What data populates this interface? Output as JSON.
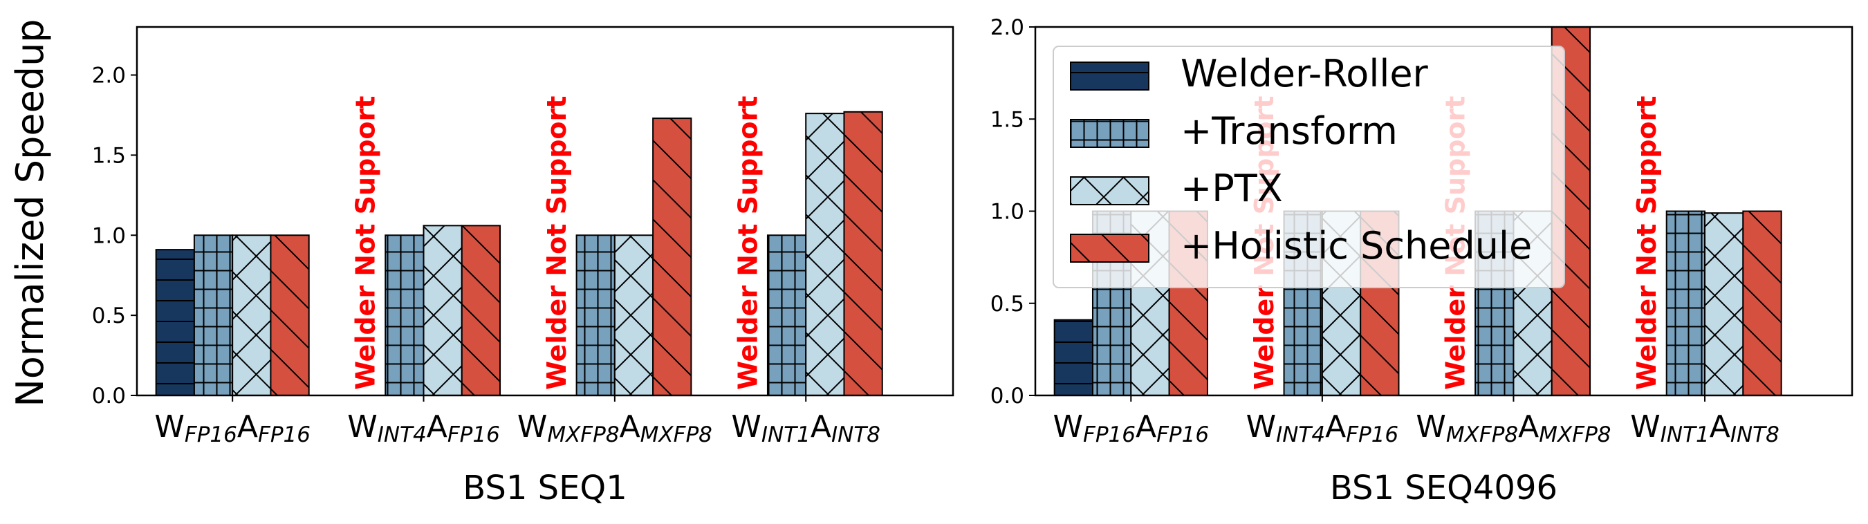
{
  "figure": {
    "ylabel": "Normalized Speedup",
    "unsupported_label": "Welder Not Support",
    "legend": [
      {
        "name": "Welder-Roller",
        "color": "#17375e",
        "hatch": "hline"
      },
      {
        "name": "+Transform",
        "color": "#77a1bd",
        "hatch": "grid"
      },
      {
        "name": "+PTX",
        "color": "#c0dae6",
        "hatch": "cross"
      },
      {
        "name": "+Holistic Schedule",
        "color": "#d65040",
        "hatch": "diag"
      }
    ]
  },
  "chart_data": [
    {
      "type": "bar",
      "xlabel": "BS1 SEQ1",
      "ylabel": "Normalized Speedup",
      "ylim": [
        0,
        2.3
      ],
      "yticks": [
        "0.0",
        "0.5",
        "1.0",
        "1.5",
        "2.0"
      ],
      "categories": [
        {
          "base": "W",
          "sub1": "FP16",
          "mid": "A",
          "sub2": "FP16"
        },
        {
          "base": "W",
          "sub1": "INT4",
          "mid": "A",
          "sub2": "FP16"
        },
        {
          "base": "W",
          "sub1": "MXFP8",
          "mid": "A",
          "sub2": "MXFP8"
        },
        {
          "base": "W",
          "sub1": "INT1",
          "mid": "A",
          "sub2": "INT8"
        }
      ],
      "series": [
        {
          "name": "Welder-Roller",
          "values": [
            0.91,
            null,
            null,
            null
          ]
        },
        {
          "name": "+Transform",
          "values": [
            1.0,
            1.0,
            1.0,
            1.0
          ]
        },
        {
          "name": "+PTX",
          "values": [
            1.0,
            1.06,
            1.0,
            1.76
          ]
        },
        {
          "name": "+Holistic Schedule",
          "values": [
            1.0,
            1.06,
            1.73,
            1.77
          ]
        }
      ],
      "unsupported": [
        false,
        true,
        true,
        true
      ],
      "legend": "none"
    },
    {
      "type": "bar",
      "xlabel": "BS1 SEQ4096",
      "ylim": [
        0,
        2.0
      ],
      "yticks": [
        "0.0",
        "0.5",
        "1.0",
        "1.5",
        "2.0"
      ],
      "categories": [
        {
          "base": "W",
          "sub1": "FP16",
          "mid": "A",
          "sub2": "FP16"
        },
        {
          "base": "W",
          "sub1": "INT4",
          "mid": "A",
          "sub2": "FP16"
        },
        {
          "base": "W",
          "sub1": "MXFP8",
          "mid": "A",
          "sub2": "MXFP8"
        },
        {
          "base": "W",
          "sub1": "INT1",
          "mid": "A",
          "sub2": "INT8"
        }
      ],
      "series": [
        {
          "name": "Welder-Roller",
          "values": [
            0.41,
            null,
            null,
            null
          ]
        },
        {
          "name": "+Transform",
          "values": [
            1.0,
            1.0,
            1.0,
            1.0
          ]
        },
        {
          "name": "+PTX",
          "values": [
            1.0,
            1.0,
            1.0,
            0.99
          ]
        },
        {
          "name": "+Holistic Schedule",
          "values": [
            1.0,
            1.0,
            2.0,
            1.0
          ]
        }
      ],
      "unsupported": [
        false,
        true,
        true,
        true
      ],
      "legend": "upper-left"
    }
  ]
}
